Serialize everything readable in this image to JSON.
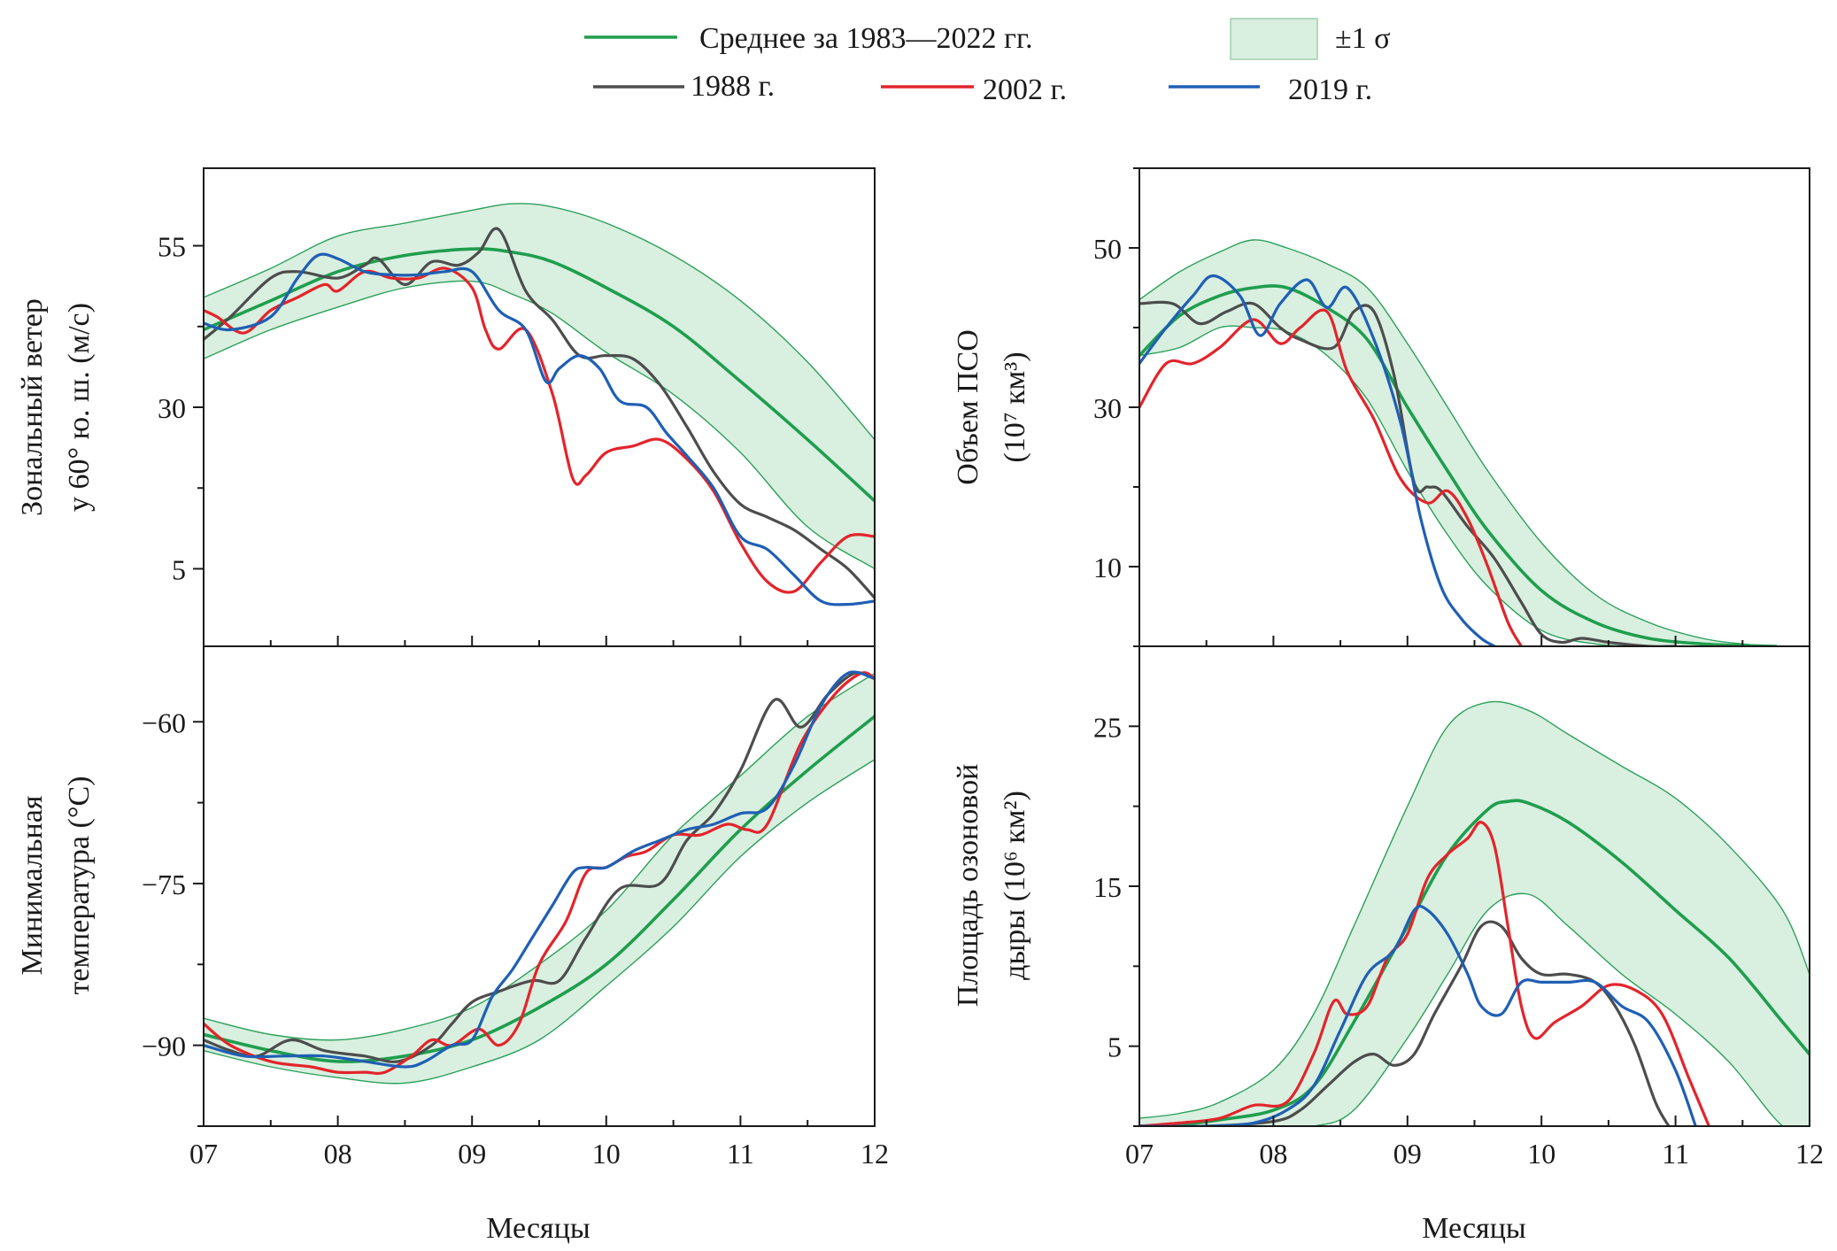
{
  "legend": {
    "mean_label": "Среднее за 1983—2022 гг.",
    "sigma_label": "±1 σ",
    "y1988_label": "1988 г.",
    "y2002_label": "2002 г.",
    "y2019_label": "2019 г."
  },
  "colors": {
    "mean": "#1f9e4e",
    "band_fill": "#d9efe0",
    "band_edge": "#2ca05a",
    "y1988": "#4d4d4d",
    "y2002": "#e3242b",
    "y2019": "#1f5fb4"
  },
  "x_axis": {
    "label": "Месяцы",
    "ticks": [
      "07",
      "08",
      "09",
      "10",
      "11",
      "12"
    ]
  },
  "chart_data": [
    {
      "type": "line",
      "ylabel_lines": [
        "Зональный ветер",
        "у 60° ю. ш. (м/с)"
      ],
      "xlim": [
        7,
        12
      ],
      "ylim": [
        -7,
        67
      ],
      "yticks": [
        5,
        30,
        55
      ],
      "ytick_labels": [
        "5",
        "30",
        "55"
      ],
      "band": {
        "x": [
          7.0,
          7.5,
          8.0,
          8.5,
          9.0,
          9.3,
          9.6,
          10.0,
          10.5,
          11.0,
          11.5,
          12.0
        ],
        "lower": [
          37.5,
          42.0,
          45.5,
          48.5,
          49.5,
          47.5,
          44.5,
          38.5,
          32.0,
          23.0,
          11.5,
          5.0
        ],
        "upper": [
          47.0,
          51.5,
          56.5,
          58.5,
          60.5,
          61.5,
          61.0,
          58.5,
          53.5,
          46.5,
          37.0,
          25.0
        ]
      },
      "series": [
        {
          "name": "Среднее за 1983—2022 гг.",
          "key": "mean",
          "x": [
            7.0,
            7.5,
            8.0,
            8.5,
            9.0,
            9.3,
            9.6,
            10.0,
            10.5,
            11.0,
            11.5,
            12.0
          ],
          "y": [
            42.0,
            46.5,
            51.0,
            53.5,
            54.5,
            54.0,
            52.5,
            48.5,
            42.5,
            34.0,
            25.0,
            15.5
          ]
        },
        {
          "name": "1988 г.",
          "key": "y1988",
          "x": [
            7.0,
            7.2,
            7.5,
            7.7,
            8.0,
            8.2,
            8.3,
            8.5,
            8.7,
            8.9,
            9.05,
            9.2,
            9.4,
            9.6,
            9.8,
            10.0,
            10.2,
            10.4,
            10.6,
            10.8,
            11.0,
            11.2,
            11.4,
            11.6,
            11.8,
            12.0
          ],
          "y": [
            40.5,
            44.0,
            50.0,
            51.0,
            50.0,
            52.0,
            53.0,
            49.0,
            52.5,
            52.0,
            54.0,
            57.5,
            48.0,
            43.5,
            38.0,
            38.0,
            37.5,
            33.5,
            27.0,
            20.0,
            15.0,
            13.0,
            11.0,
            8.0,
            5.0,
            0.5
          ]
        },
        {
          "name": "2002 г.",
          "key": "y2002",
          "x": [
            7.0,
            7.1,
            7.3,
            7.5,
            7.7,
            7.9,
            8.0,
            8.2,
            8.4,
            8.6,
            8.8,
            9.0,
            9.1,
            9.2,
            9.4,
            9.6,
            9.75,
            9.85,
            10.0,
            10.2,
            10.4,
            10.6,
            10.8,
            11.0,
            11.2,
            11.4,
            11.6,
            11.8,
            12.0
          ],
          "y": [
            45.0,
            44.0,
            41.5,
            45.0,
            47.0,
            49.0,
            48.0,
            51.0,
            50.0,
            50.0,
            51.5,
            48.5,
            42.0,
            39.0,
            42.0,
            32.0,
            19.0,
            19.5,
            23.0,
            24.0,
            25.0,
            22.0,
            17.0,
            9.0,
            3.0,
            1.5,
            6.0,
            10.0,
            10.0
          ]
        },
        {
          "name": "2019 г.",
          "key": "y2019",
          "x": [
            7.0,
            7.2,
            7.5,
            7.7,
            7.85,
            8.0,
            8.2,
            8.4,
            8.6,
            8.8,
            9.0,
            9.2,
            9.4,
            9.55,
            9.65,
            9.8,
            9.95,
            10.1,
            10.3,
            10.45,
            10.6,
            10.8,
            11.0,
            11.2,
            11.4,
            11.6,
            11.8,
            12.0
          ],
          "y": [
            43.0,
            42.0,
            44.0,
            50.0,
            53.5,
            53.0,
            51.0,
            50.5,
            50.5,
            51.0,
            51.0,
            45.0,
            42.0,
            34.0,
            36.0,
            38.0,
            36.0,
            31.0,
            30.0,
            26.0,
            22.5,
            17.5,
            10.0,
            8.0,
            4.0,
            0.0,
            -0.5,
            0.0
          ]
        }
      ]
    },
    {
      "type": "line",
      "ylabel_lines": [
        "Объем ПСО",
        "(10⁷ км³)"
      ],
      "xlim": [
        7,
        12
      ],
      "ylim": [
        0,
        60
      ],
      "yticks": [
        10,
        30,
        50
      ],
      "ytick_labels": [
        "10",
        "30",
        "50"
      ],
      "band": {
        "x": [
          7.0,
          7.3,
          7.6,
          7.85,
          8.1,
          8.4,
          8.7,
          9.0,
          9.3,
          9.6,
          10.0,
          10.4,
          10.8,
          11.2,
          11.5,
          11.75
        ],
        "lower": [
          36.5,
          37.5,
          40.0,
          40.0,
          39.5,
          36.5,
          31.0,
          22.0,
          14.0,
          7.5,
          2.0,
          0.3,
          0.0,
          0.0,
          0.0,
          0.0
        ],
        "upper": [
          43.5,
          47.0,
          49.5,
          51.0,
          50.0,
          48.0,
          45.0,
          38.0,
          30.0,
          22.0,
          13.0,
          6.5,
          3.0,
          1.0,
          0.3,
          0.0
        ]
      },
      "series": [
        {
          "name": "Среднее за 1983—2022 гг.",
          "key": "mean",
          "x": [
            7.0,
            7.3,
            7.6,
            7.85,
            8.1,
            8.4,
            8.7,
            9.0,
            9.3,
            9.6,
            10.0,
            10.4,
            10.8,
            11.2,
            11.5,
            11.75
          ],
          "y": [
            36.5,
            41.5,
            44.0,
            45.0,
            45.0,
            42.5,
            38.5,
            30.0,
            22.0,
            14.5,
            7.0,
            3.0,
            1.0,
            0.3,
            0.1,
            0.0
          ]
        },
        {
          "name": "1988 г.",
          "key": "y1988",
          "x": [
            7.0,
            7.25,
            7.45,
            7.65,
            7.85,
            8.05,
            8.2,
            8.45,
            8.6,
            8.75,
            8.9,
            9.05,
            9.15,
            9.25,
            9.45,
            9.65,
            9.85,
            10.0,
            10.15,
            10.3,
            10.5,
            10.8,
            11.0
          ],
          "y": [
            43.0,
            43.0,
            40.5,
            42.0,
            43.0,
            40.0,
            38.5,
            37.5,
            42.0,
            42.0,
            34.0,
            20.5,
            20.0,
            19.5,
            15.0,
            11.0,
            5.5,
            1.5,
            0.5,
            1.0,
            0.5,
            0.0,
            0.0
          ]
        },
        {
          "name": "2002 г.",
          "key": "y2002",
          "x": [
            7.0,
            7.2,
            7.4,
            7.6,
            7.85,
            8.05,
            8.2,
            8.4,
            8.55,
            8.75,
            8.95,
            9.15,
            9.3,
            9.45,
            9.6,
            9.75,
            9.85
          ],
          "y": [
            30.0,
            35.5,
            35.5,
            37.5,
            41.0,
            38.0,
            40.0,
            42.0,
            34.5,
            28.5,
            21.0,
            18.0,
            19.5,
            16.0,
            10.0,
            3.0,
            0.0
          ]
        },
        {
          "name": "2019 г.",
          "key": "y2019",
          "x": [
            7.0,
            7.2,
            7.4,
            7.55,
            7.75,
            7.9,
            8.05,
            8.25,
            8.4,
            8.55,
            8.75,
            8.95,
            9.1,
            9.25,
            9.4,
            9.55,
            9.65
          ],
          "y": [
            35.5,
            40.0,
            44.0,
            46.5,
            44.0,
            39.0,
            43.0,
            46.0,
            42.5,
            45.0,
            38.5,
            28.0,
            16.0,
            7.5,
            3.5,
            1.0,
            0.0
          ]
        }
      ]
    },
    {
      "type": "line",
      "ylabel_lines": [
        "Минимальная",
        "температура (°C)"
      ],
      "xlim": [
        7,
        12
      ],
      "ylim": [
        -97.5,
        -53
      ],
      "yticks": [
        -90,
        -75,
        -60
      ],
      "ytick_labels": [
        "−90",
        "−75",
        "−60"
      ],
      "band": {
        "x": [
          7.0,
          7.5,
          8.0,
          8.5,
          9.0,
          9.5,
          10.0,
          10.5,
          11.0,
          11.5,
          12.0
        ],
        "lower": [
          -90.5,
          -92.0,
          -93.0,
          -93.5,
          -92.0,
          -89.5,
          -84.5,
          -79.0,
          -72.5,
          -67.5,
          -63.5
        ],
        "upper": [
          -87.5,
          -89.0,
          -89.5,
          -88.5,
          -86.5,
          -82.5,
          -77.5,
          -70.5,
          -65.0,
          -59.5,
          -55.5
        ]
      },
      "series": [
        {
          "name": "Среднее за 1983—2022 гг.",
          "key": "mean",
          "x": [
            7.0,
            7.5,
            8.0,
            8.5,
            9.0,
            9.5,
            10.0,
            10.5,
            11.0,
            11.5,
            12.0
          ],
          "y": [
            -89.0,
            -90.5,
            -91.5,
            -91.0,
            -89.5,
            -86.5,
            -82.5,
            -76.5,
            -70.0,
            -64.5,
            -59.5
          ]
        },
        {
          "name": "1988 г.",
          "key": "y1988",
          "x": [
            7.0,
            7.2,
            7.4,
            7.65,
            7.9,
            8.2,
            8.45,
            8.7,
            8.85,
            9.0,
            9.2,
            9.45,
            9.65,
            9.85,
            10.1,
            10.4,
            10.6,
            10.8,
            11.0,
            11.25,
            11.45,
            11.65,
            11.85,
            12.0
          ],
          "y": [
            -89.5,
            -90.5,
            -91.0,
            -89.5,
            -90.5,
            -91.0,
            -91.5,
            -90.0,
            -88.0,
            -86.0,
            -85.0,
            -84.0,
            -84.0,
            -80.0,
            -75.5,
            -75.0,
            -71.0,
            -68.5,
            -64.5,
            -58.0,
            -60.5,
            -57.5,
            -55.5,
            -56.0
          ]
        },
        {
          "name": "2002 г.",
          "key": "y2002",
          "x": [
            7.0,
            7.2,
            7.5,
            7.8,
            8.0,
            8.2,
            8.35,
            8.55,
            8.7,
            8.85,
            9.05,
            9.2,
            9.35,
            9.5,
            9.7,
            9.85,
            10.0,
            10.15,
            10.3,
            10.5,
            10.7,
            10.9,
            11.05,
            11.2,
            11.45,
            11.7,
            11.9,
            12.0
          ],
          "y": [
            -88.0,
            -90.0,
            -91.5,
            -92.0,
            -92.5,
            -92.5,
            -92.5,
            -91.0,
            -89.5,
            -90.0,
            -88.5,
            -90.0,
            -88.0,
            -82.5,
            -78.5,
            -74.0,
            -73.5,
            -72.5,
            -72.0,
            -70.5,
            -70.5,
            -69.5,
            -70.0,
            -69.5,
            -62.0,
            -57.5,
            -55.5,
            -56.0
          ]
        },
        {
          "name": "2019 г.",
          "key": "y2019",
          "x": [
            7.0,
            7.3,
            7.6,
            7.9,
            8.2,
            8.5,
            8.65,
            8.85,
            9.0,
            9.15,
            9.3,
            9.45,
            9.6,
            9.75,
            9.85,
            10.0,
            10.2,
            10.4,
            10.6,
            10.8,
            11.0,
            11.2,
            11.4,
            11.6,
            11.8,
            12.0
          ],
          "y": [
            -90.0,
            -91.0,
            -91.0,
            -91.0,
            -91.5,
            -92.0,
            -91.5,
            -90.0,
            -89.5,
            -85.5,
            -83.0,
            -80.0,
            -77.0,
            -74.0,
            -73.5,
            -73.5,
            -72.0,
            -71.0,
            -70.0,
            -69.5,
            -68.5,
            -68.0,
            -64.0,
            -58.5,
            -55.5,
            -56.0
          ]
        }
      ]
    },
    {
      "type": "line",
      "ylabel_lines": [
        "Площадь озоновой",
        "дыры (10⁶ км²)"
      ],
      "xlim": [
        7,
        12
      ],
      "ylim": [
        0,
        30
      ],
      "yticks": [
        5,
        15,
        25
      ],
      "ytick_labels": [
        "5",
        "15",
        "25"
      ],
      "band": {
        "x": [
          7.0,
          7.3,
          7.6,
          8.0,
          8.3,
          8.6,
          9.0,
          9.3,
          9.6,
          9.9,
          10.2,
          10.6,
          11.0,
          11.4,
          11.8,
          12.0
        ],
        "lower": [
          0.0,
          0.0,
          0.0,
          0.0,
          0.0,
          1.0,
          5.5,
          9.5,
          13.5,
          14.5,
          12.5,
          9.5,
          7.0,
          4.0,
          0.0,
          0.0
        ],
        "upper": [
          0.5,
          0.8,
          1.5,
          3.5,
          7.0,
          12.5,
          20.0,
          25.0,
          26.5,
          26.0,
          24.5,
          22.5,
          20.5,
          17.5,
          13.5,
          9.5
        ]
      },
      "series": [
        {
          "name": "Среднее за 1983—2022 гг.",
          "key": "mean",
          "x": [
            7.0,
            7.3,
            7.6,
            8.0,
            8.3,
            8.6,
            9.0,
            9.3,
            9.6,
            9.75,
            9.9,
            10.2,
            10.6,
            11.0,
            11.4,
            11.8,
            12.0
          ],
          "y": [
            0.0,
            0.1,
            0.4,
            1.0,
            2.5,
            6.5,
            12.5,
            17.0,
            19.8,
            20.3,
            20.2,
            19.0,
            16.5,
            13.5,
            10.5,
            6.5,
            4.5
          ]
        },
        {
          "name": "1988 г.",
          "key": "y1988",
          "x": [
            7.0,
            7.5,
            8.0,
            8.2,
            8.4,
            8.6,
            8.75,
            8.9,
            9.05,
            9.2,
            9.4,
            9.55,
            9.7,
            9.85,
            10.0,
            10.2,
            10.4,
            10.55,
            10.7,
            10.85,
            10.95
          ],
          "y": [
            0.0,
            0.0,
            0.3,
            1.0,
            2.5,
            4.0,
            4.5,
            3.8,
            4.5,
            7.0,
            10.0,
            12.5,
            12.5,
            10.5,
            9.5,
            9.5,
            9.0,
            7.5,
            5.0,
            1.5,
            0.0
          ]
        },
        {
          "name": "2002 г.",
          "key": "y2002",
          "x": [
            7.0,
            7.3,
            7.6,
            7.85,
            8.1,
            8.3,
            8.45,
            8.55,
            8.7,
            8.85,
            9.0,
            9.15,
            9.3,
            9.45,
            9.55,
            9.65,
            9.75,
            9.85,
            9.95,
            10.1,
            10.3,
            10.5,
            10.7,
            10.9,
            11.1,
            11.25
          ],
          "y": [
            0.0,
            0.2,
            0.5,
            1.3,
            1.5,
            4.5,
            7.8,
            7.0,
            7.5,
            10.5,
            12.0,
            15.5,
            17.0,
            18.0,
            19.0,
            17.5,
            12.5,
            7.5,
            5.5,
            6.5,
            7.5,
            8.8,
            8.5,
            7.0,
            3.0,
            0.0
          ]
        },
        {
          "name": "2019 г.",
          "key": "y2019",
          "x": [
            7.0,
            7.5,
            7.85,
            8.1,
            8.3,
            8.5,
            8.7,
            8.9,
            9.05,
            9.15,
            9.3,
            9.45,
            9.55,
            9.7,
            9.85,
            10.0,
            10.2,
            10.4,
            10.6,
            10.8,
            11.0,
            11.15
          ],
          "y": [
            0.0,
            0.0,
            0.2,
            1.0,
            2.5,
            6.0,
            9.5,
            11.0,
            13.5,
            13.5,
            12.0,
            9.5,
            7.5,
            7.0,
            9.0,
            9.0,
            9.0,
            9.0,
            7.5,
            6.5,
            3.5,
            0.0
          ]
        }
      ]
    }
  ]
}
